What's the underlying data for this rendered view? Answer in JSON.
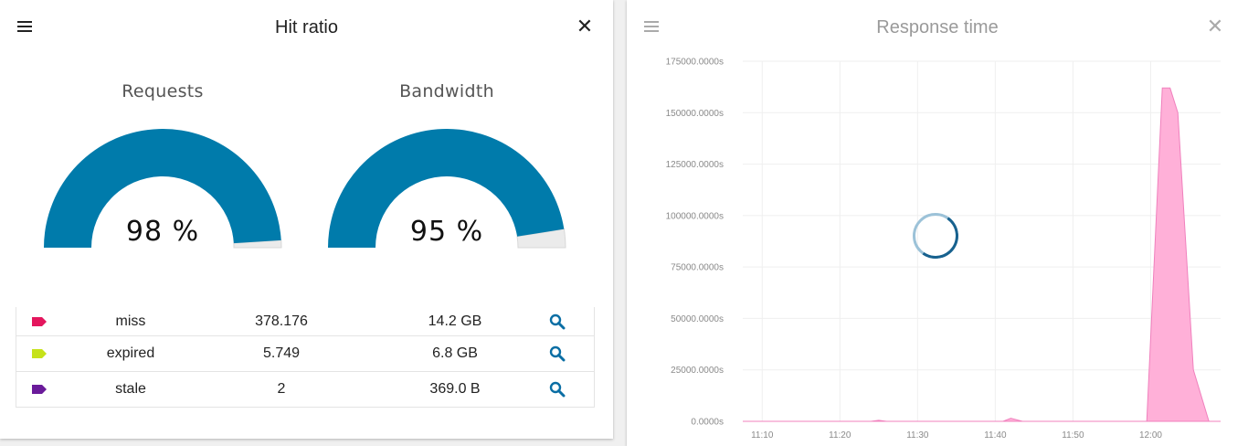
{
  "hit_panel": {
    "title": "Hit ratio",
    "gauges": [
      {
        "title": "Requests",
        "value_text": "98 %",
        "fraction": 0.98,
        "color": "#007bab",
        "track_color": "#ebebeb"
      },
      {
        "title": "Bandwidth",
        "value_text": "95 %",
        "fraction": 0.95,
        "color": "#007bab",
        "track_color": "#ebebeb"
      }
    ],
    "rows": [
      {
        "tag_color": "#e4165d",
        "label": "miss",
        "count": "378.176",
        "size": "14.2 GB",
        "icon": "search-icon"
      },
      {
        "tag_color": "#c6e21a",
        "label": "expired",
        "count": "5.749",
        "size": "6.8 GB",
        "icon": "search-icon"
      },
      {
        "tag_color": "#6a1b9a",
        "label": "stale",
        "count": "2",
        "size": "369.0 B",
        "icon": "search-icon"
      }
    ]
  },
  "response_panel": {
    "title": "Response time"
  },
  "chart_data": {
    "type": "area",
    "title": "Response time",
    "series_color": "#ffb0d8",
    "ylim": [
      0,
      175000
    ],
    "y_ticks": [
      {
        "value": 175000,
        "label": "175000.0000s"
      },
      {
        "value": 150000,
        "label": "150000.0000s"
      },
      {
        "value": 125000,
        "label": "125000.0000s"
      },
      {
        "value": 100000,
        "label": "100000.0000s"
      },
      {
        "value": 75000,
        "label": "75000.0000s"
      },
      {
        "value": 50000,
        "label": "50000.0000s"
      },
      {
        "value": 25000,
        "label": "25000.0000s"
      },
      {
        "value": 0,
        "label": "0.0000s"
      }
    ],
    "x_ticks": [
      "11:10",
      "11:20",
      "11:30",
      "11:40",
      "11:50",
      "12:00"
    ],
    "x_range_minutes": [
      7.5,
      69.0
    ],
    "x_tick_minutes": [
      10,
      20,
      30,
      40,
      50,
      60
    ],
    "points": [
      [
        7.5,
        0
      ],
      [
        24.0,
        0
      ],
      [
        25.0,
        500
      ],
      [
        26.0,
        0
      ],
      [
        41.0,
        0
      ],
      [
        42.0,
        1500
      ],
      [
        43.5,
        0
      ],
      [
        59.5,
        0
      ],
      [
        61.5,
        162000
      ],
      [
        62.5,
        162000
      ],
      [
        63.5,
        150000
      ],
      [
        65.5,
        25000
      ],
      [
        67.5,
        0
      ],
      [
        69.0,
        0
      ]
    ]
  }
}
